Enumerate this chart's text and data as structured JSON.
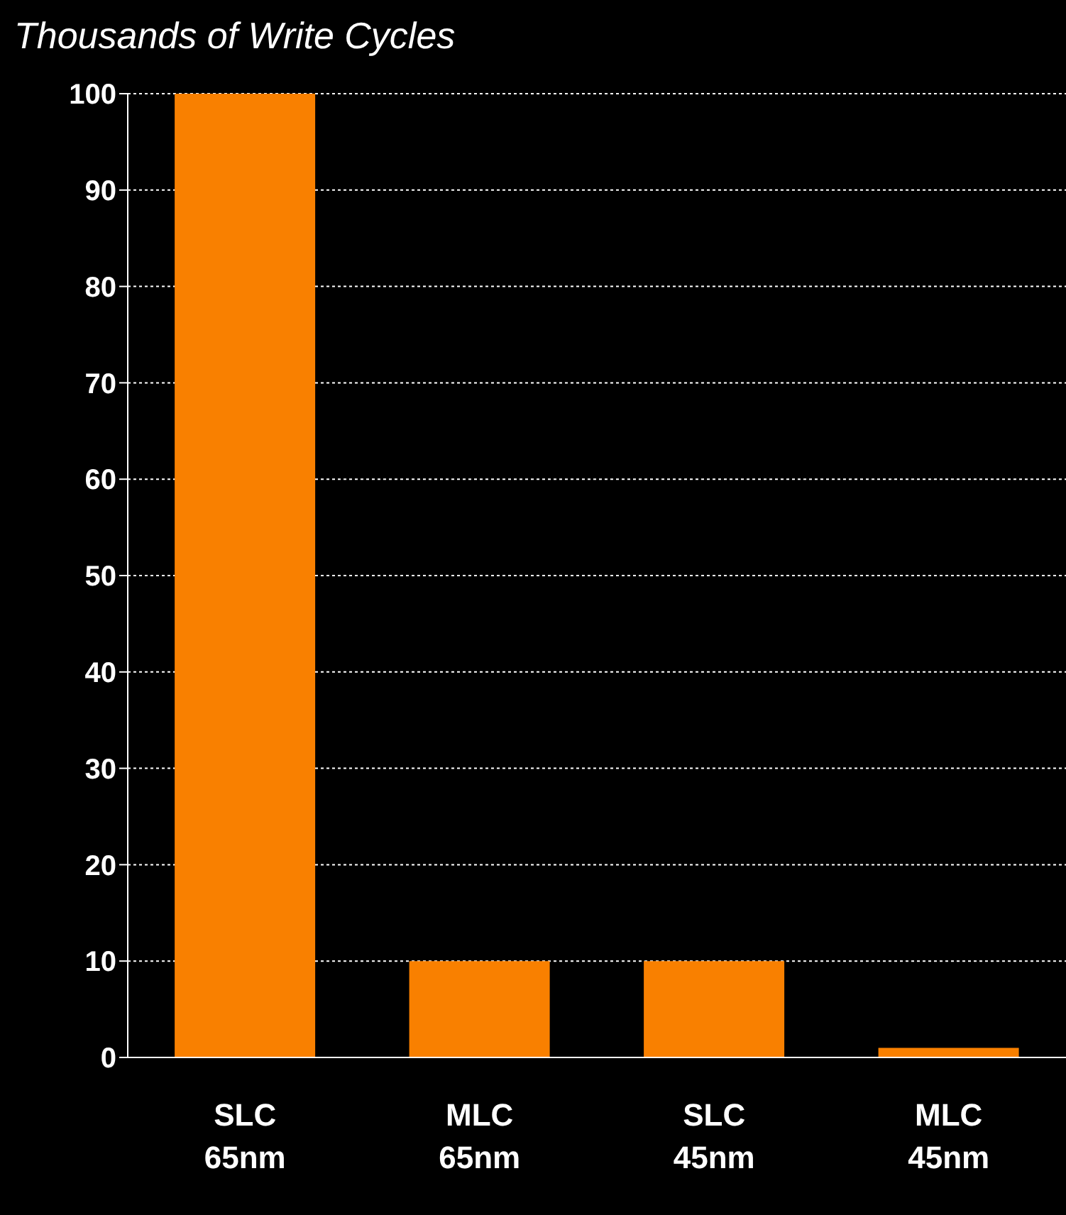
{
  "chart_data": {
    "type": "bar",
    "title": "Thousands of Write Cycles",
    "categories": [
      "SLC\n65nm",
      "MLC\n65nm",
      "SLC\n45nm",
      "MLC\n45nm"
    ],
    "values": [
      100,
      10,
      10,
      1
    ],
    "color": "#f98000",
    "ylim": [
      0,
      100
    ],
    "yticks": [
      0,
      10,
      20,
      30,
      40,
      50,
      60,
      70,
      80,
      90,
      100
    ],
    "grid": "y"
  }
}
